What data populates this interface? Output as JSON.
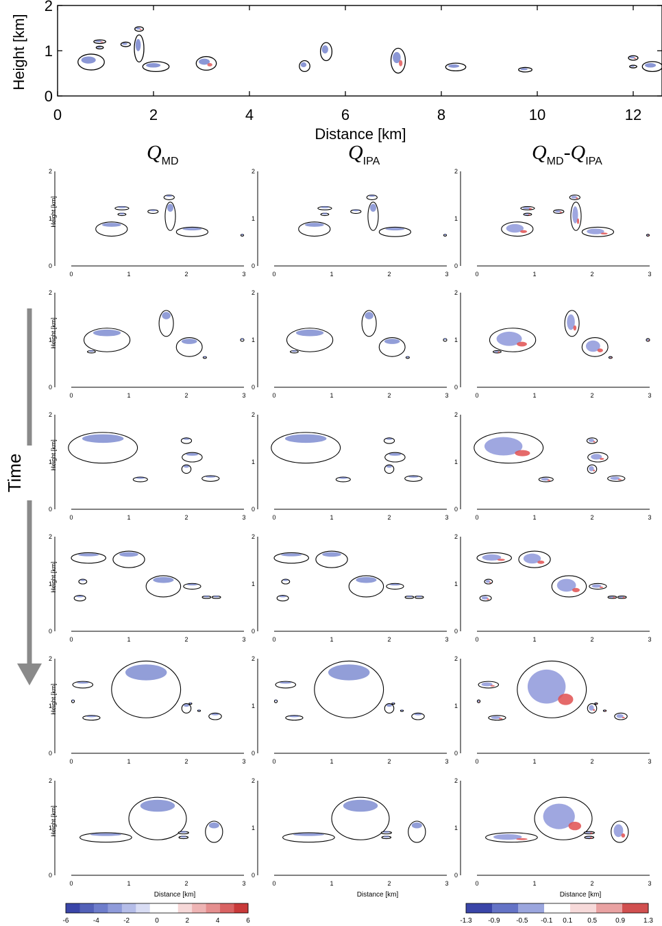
{
  "chart_data": {
    "type": "heatmap",
    "top_panel": {
      "xlabel": "Distance [km]",
      "ylabel": "Height [km]",
      "xlim": [
        0,
        12.6
      ],
      "ylim": [
        0,
        2
      ],
      "xticks": [
        "0",
        "2",
        "4",
        "6",
        "8",
        "10",
        "12"
      ],
      "yticks": [
        "0",
        "1",
        "2"
      ],
      "clouds": [
        {
          "x": 0.7,
          "y": 0.75,
          "w": 0.55,
          "h": 0.35
        },
        {
          "x": 0.88,
          "y": 1.2,
          "w": 0.25,
          "h": 0.08
        },
        {
          "x": 0.88,
          "y": 1.07,
          "w": 0.15,
          "h": 0.06
        },
        {
          "x": 1.42,
          "y": 1.14,
          "w": 0.2,
          "h": 0.1
        },
        {
          "x": 1.7,
          "y": 1.48,
          "w": 0.18,
          "h": 0.1
        },
        {
          "x": 1.7,
          "y": 1.05,
          "w": 0.2,
          "h": 0.6
        },
        {
          "x": 2.05,
          "y": 0.65,
          "w": 0.55,
          "h": 0.22
        },
        {
          "x": 3.1,
          "y": 0.72,
          "w": 0.42,
          "h": 0.3
        },
        {
          "x": 5.15,
          "y": 0.66,
          "w": 0.22,
          "h": 0.24
        },
        {
          "x": 5.6,
          "y": 0.98,
          "w": 0.24,
          "h": 0.4
        },
        {
          "x": 7.1,
          "y": 0.78,
          "w": 0.3,
          "h": 0.55
        },
        {
          "x": 8.3,
          "y": 0.64,
          "w": 0.42,
          "h": 0.17
        },
        {
          "x": 9.75,
          "y": 0.58,
          "w": 0.28,
          "h": 0.1
        },
        {
          "x": 12.0,
          "y": 0.84,
          "w": 0.2,
          "h": 0.1
        },
        {
          "x": 12.0,
          "y": 0.65,
          "w": 0.15,
          "h": 0.06
        },
        {
          "x": 12.4,
          "y": 0.65,
          "w": 0.42,
          "h": 0.22
        }
      ]
    },
    "column_titles": [
      {
        "main": "Q",
        "sub": "MD"
      },
      {
        "main": "Q",
        "sub": "IPA"
      },
      {
        "main": "Q",
        "sub": "MD",
        "mid": "-Q",
        "sub2": "IPA"
      }
    ],
    "time_label": "Time",
    "small_panels": {
      "xlim": [
        0,
        3
      ],
      "ylim": [
        0,
        2
      ],
      "xticks": [
        "0",
        "1",
        "2",
        "3"
      ],
      "yticks": [
        "0",
        "1",
        "2"
      ],
      "ylabel": "Height [km]",
      "xlabel": "Distance [km]"
    },
    "time_steps": [
      [
        {
          "x": 0.7,
          "y": 0.78,
          "w": 0.55,
          "h": 0.3
        },
        {
          "x": 0.88,
          "y": 1.22,
          "w": 0.24,
          "h": 0.07
        },
        {
          "x": 0.88,
          "y": 1.09,
          "w": 0.14,
          "h": 0.05
        },
        {
          "x": 1.42,
          "y": 1.15,
          "w": 0.18,
          "h": 0.08
        },
        {
          "x": 1.7,
          "y": 1.45,
          "w": 0.18,
          "h": 0.1
        },
        {
          "x": 1.72,
          "y": 1.05,
          "w": 0.18,
          "h": 0.6
        },
        {
          "x": 2.1,
          "y": 0.72,
          "w": 0.55,
          "h": 0.2
        },
        {
          "x": 2.97,
          "y": 0.65,
          "w": 0.05,
          "h": 0.04
        }
      ],
      [
        {
          "x": 0.62,
          "y": 1.0,
          "w": 0.8,
          "h": 0.5
        },
        {
          "x": 0.35,
          "y": 0.75,
          "w": 0.14,
          "h": 0.05
        },
        {
          "x": 1.65,
          "y": 1.35,
          "w": 0.25,
          "h": 0.55
        },
        {
          "x": 2.05,
          "y": 0.85,
          "w": 0.45,
          "h": 0.4
        },
        {
          "x": 2.32,
          "y": 0.63,
          "w": 0.06,
          "h": 0.04
        },
        {
          "x": 2.97,
          "y": 1.0,
          "w": 0.06,
          "h": 0.06
        }
      ],
      [
        {
          "x": 0.55,
          "y": 1.3,
          "w": 1.2,
          "h": 0.65
        },
        {
          "x": 1.2,
          "y": 0.63,
          "w": 0.25,
          "h": 0.1
        },
        {
          "x": 2.0,
          "y": 1.45,
          "w": 0.18,
          "h": 0.12
        },
        {
          "x": 2.1,
          "y": 1.1,
          "w": 0.35,
          "h": 0.2
        },
        {
          "x": 2.0,
          "y": 0.85,
          "w": 0.16,
          "h": 0.18
        },
        {
          "x": 2.42,
          "y": 0.65,
          "w": 0.3,
          "h": 0.12
        }
      ],
      [
        {
          "x": 0.3,
          "y": 1.55,
          "w": 0.6,
          "h": 0.22
        },
        {
          "x": 1.0,
          "y": 1.52,
          "w": 0.55,
          "h": 0.35
        },
        {
          "x": 1.6,
          "y": 0.95,
          "w": 0.6,
          "h": 0.45
        },
        {
          "x": 2.1,
          "y": 0.95,
          "w": 0.3,
          "h": 0.12
        },
        {
          "x": 0.2,
          "y": 1.05,
          "w": 0.14,
          "h": 0.1
        },
        {
          "x": 0.15,
          "y": 0.7,
          "w": 0.2,
          "h": 0.12
        },
        {
          "x": 2.35,
          "y": 0.72,
          "w": 0.15,
          "h": 0.05
        },
        {
          "x": 2.52,
          "y": 0.72,
          "w": 0.15,
          "h": 0.05
        }
      ],
      [
        {
          "x": 0.2,
          "y": 1.45,
          "w": 0.35,
          "h": 0.14
        },
        {
          "x": 1.3,
          "y": 1.35,
          "w": 1.2,
          "h": 1.2
        },
        {
          "x": 0.35,
          "y": 0.75,
          "w": 0.3,
          "h": 0.1
        },
        {
          "x": 2.5,
          "y": 0.78,
          "w": 0.22,
          "h": 0.14
        },
        {
          "x": 2.0,
          "y": 0.95,
          "w": 0.16,
          "h": 0.2
        },
        {
          "x": 0.03,
          "y": 1.1,
          "w": 0.05,
          "h": 0.06
        },
        {
          "x": 2.07,
          "y": 1.05,
          "w": 0.05,
          "h": 0.03
        },
        {
          "x": 2.22,
          "y": 0.9,
          "w": 0.05,
          "h": 0.03
        }
      ],
      [
        {
          "x": 0.6,
          "y": 0.8,
          "w": 0.9,
          "h": 0.2
        },
        {
          "x": 1.5,
          "y": 1.2,
          "w": 1.0,
          "h": 0.9
        },
        {
          "x": 1.95,
          "y": 0.9,
          "w": 0.18,
          "h": 0.05
        },
        {
          "x": 1.95,
          "y": 0.8,
          "w": 0.16,
          "h": 0.05
        },
        {
          "x": 2.48,
          "y": 0.92,
          "w": 0.3,
          "h": 0.45
        }
      ]
    ],
    "colorbars": [
      {
        "range": [
          -6,
          6
        ],
        "labels": [
          "-6",
          "-4",
          "-2",
          "0",
          "2",
          "4",
          "6"
        ],
        "colors": [
          "#3a45a8",
          "#5361b8",
          "#6e7dcb",
          "#8f9bda",
          "#b5bde8",
          "#d9ddf4",
          "#ffffff",
          "#ffffff",
          "#f6d8d8",
          "#eeb4b4",
          "#e58f8f",
          "#d96363",
          "#c93a3a"
        ]
      },
      {
        "range": [
          -1.3,
          1.3
        ],
        "labels": [
          "-1.3",
          "-0.9",
          "-0.5",
          "-0.1",
          "0.1",
          "0.5",
          "0.9",
          "1.3"
        ],
        "colors": [
          "#3a45a8",
          "#6473c6",
          "#9ba6de",
          "#ffffff",
          "#f7dada",
          "#e9a2a2",
          "#d15050"
        ]
      }
    ]
  }
}
